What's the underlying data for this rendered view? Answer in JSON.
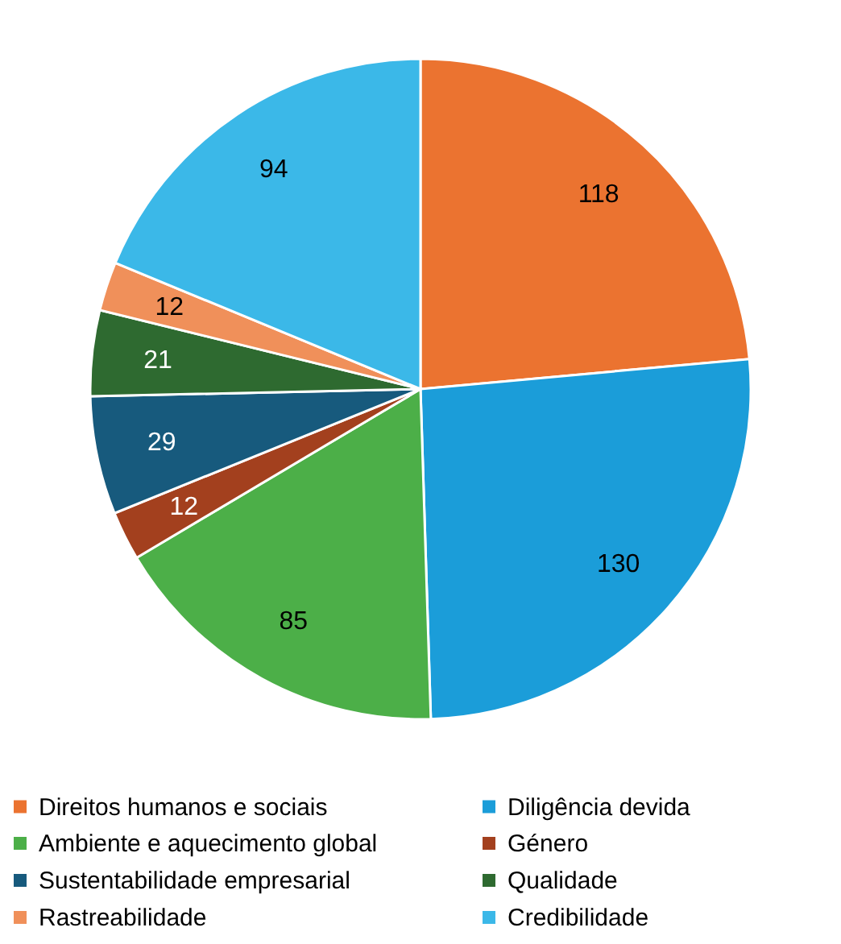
{
  "chart_data": {
    "type": "pie",
    "categories": [
      "Direitos humanos e sociais",
      "Diligência devida",
      "Ambiente e aquecimento global",
      "Género",
      "Sustentabilidade empresarial",
      "Qualidade",
      "Rastreabilidade",
      "Credibilidade"
    ],
    "values": [
      118,
      130,
      85,
      12,
      29,
      21,
      12,
      94
    ],
    "colors": [
      "#eb7330",
      "#1b9dd9",
      "#4caf48",
      "#a3401e",
      "#175a7d",
      "#2e6a30",
      "#f0905a",
      "#3bb8e8"
    ],
    "data_labels": true,
    "legend": "bottom"
  }
}
